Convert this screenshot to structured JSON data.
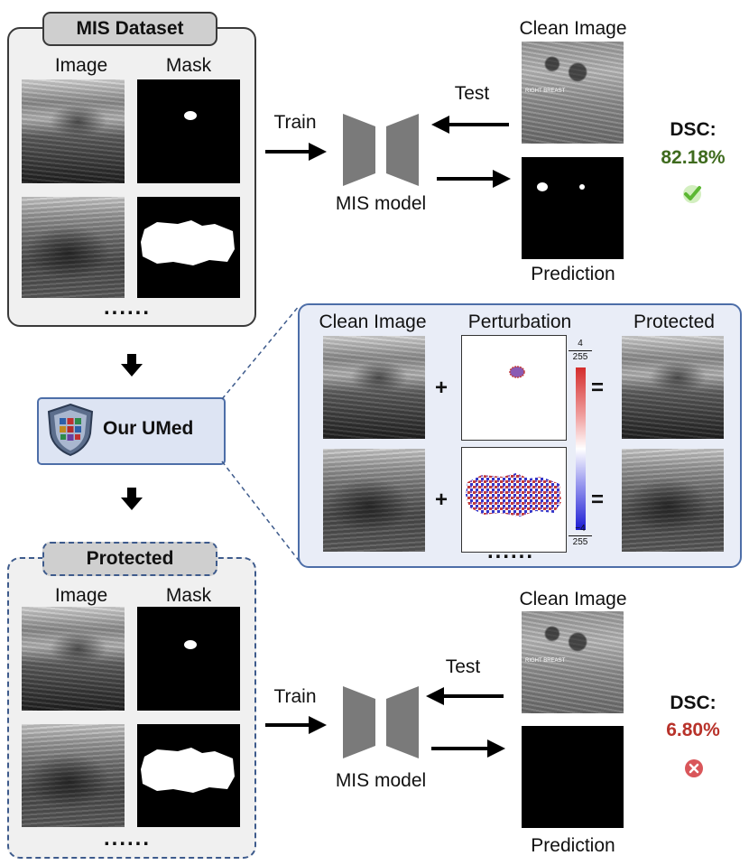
{
  "top": {
    "dataset_tag": "MIS Dataset",
    "col_image": "Image",
    "col_mask": "Mask",
    "ellipsis": "......",
    "train": "Train",
    "test": "Test",
    "model": "MIS model",
    "clean_image": "Clean Image",
    "prediction": "Prediction",
    "dsc_label": "DSC:",
    "dsc_value": "82.18%",
    "dsc_color": "#3f6b1e",
    "status_icon": "check-icon",
    "status_color": "#5cb832",
    "watermark": "RIGHT BREAST"
  },
  "middle": {
    "umed_label": "Our UMed",
    "shield_icon": "shield-crest-icon",
    "clean_image": "Clean Image",
    "perturbation": "Perturbation",
    "protected": "Protected",
    "plus": "+",
    "equals": "=",
    "ellipsis": "......",
    "scale_top_num": "4",
    "scale_top_den": "255",
    "scale_bot_num": "−4",
    "scale_bot_den": "255"
  },
  "bottom": {
    "dataset_tag": "Protected",
    "col_image": "Image",
    "col_mask": "Mask",
    "ellipsis": "......",
    "train": "Train",
    "test": "Test",
    "model": "MIS model",
    "clean_image": "Clean Image",
    "prediction": "Prediction",
    "dsc_label": "DSC:",
    "dsc_value": "6.80%",
    "dsc_color": "#b8322a",
    "status_icon": "cross-icon",
    "status_color": "#d9565a",
    "watermark": "RIGHT BREAST"
  }
}
